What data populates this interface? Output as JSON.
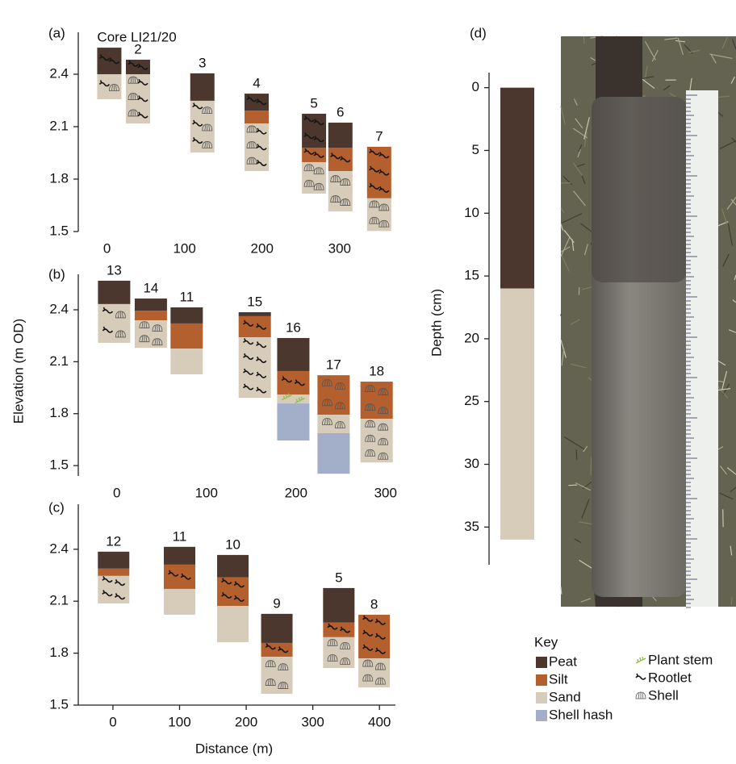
{
  "y_label": "Elevation (m OD)",
  "x_label": "Distance (m)",
  "chart_data": [
    {
      "type": "core-log",
      "label": "(a)",
      "xlim": [
        -37,
        372
      ],
      "xticks": [
        0,
        100,
        200,
        300
      ],
      "ylim": [
        1.5,
        2.64
      ],
      "yticks": [
        1.5,
        1.8,
        2.1,
        2.4
      ],
      "x_axis_line": false,
      "cores": [
        {
          "label": "Core LI21/20",
          "x": 3,
          "top": 2.552,
          "layers": [
            {
              "unit": "Peat",
              "base": 2.4,
              "symbols": [
                "Rootlet"
              ]
            },
            {
              "unit": "Sand",
              "base": 2.257,
              "symbols": [
                "Rootlet",
                "Shell"
              ]
            }
          ]
        },
        {
          "label": "2",
          "x": 40,
          "top": 2.483,
          "layers": [
            {
              "unit": "Peat",
              "base": 2.4,
              "symbols": [
                "Rootlet"
              ]
            },
            {
              "unit": "Sand",
              "base": 2.118,
              "symbols": [
                "Rootlet",
                "Shell"
              ]
            }
          ]
        },
        {
          "label": "3",
          "x": 123,
          "top": 2.405,
          "layers": [
            {
              "unit": "Peat",
              "base": 2.248,
              "symbols": []
            },
            {
              "unit": "Sand",
              "base": 1.952,
              "symbols": [
                "Rootlet",
                "Shell"
              ]
            }
          ]
        },
        {
          "label": "4",
          "x": 193,
          "top": 2.289,
          "layers": [
            {
              "unit": "Peat",
              "base": 2.192,
              "symbols": [
                "Rootlet"
              ]
            },
            {
              "unit": "Silt",
              "base": 2.118,
              "symbols": []
            },
            {
              "unit": "Sand",
              "base": 1.846,
              "symbols": [
                "Rootlet",
                "Shell"
              ]
            }
          ]
        },
        {
          "label": "5",
          "x": 267,
          "top": 2.174,
          "layers": [
            {
              "unit": "Peat",
              "base": 1.98,
              "symbols": [
                "Rootlet"
              ]
            },
            {
              "unit": "Silt",
              "base": 1.897,
              "symbols": [
                "Rootlet"
              ]
            },
            {
              "unit": "Sand",
              "base": 1.717,
              "symbols": [
                "Shell"
              ]
            }
          ]
        },
        {
          "label": "6",
          "x": 301,
          "top": 2.123,
          "layers": [
            {
              "unit": "Peat",
              "base": 1.98,
              "symbols": []
            },
            {
              "unit": "Silt",
              "base": 1.846,
              "symbols": [
                "Rootlet"
              ]
            },
            {
              "unit": "Sand",
              "base": 1.615,
              "symbols": [
                "Shell"
              ]
            }
          ]
        },
        {
          "label": "7",
          "x": 351,
          "top": 1.985,
          "layers": [
            {
              "unit": "Silt",
              "base": 1.69,
              "symbols": [
                "Rootlet"
              ]
            },
            {
              "unit": "Sand",
              "base": 1.503,
              "symbols": [
                "Shell"
              ]
            }
          ]
        }
      ]
    },
    {
      "type": "core-log",
      "label": "(b)",
      "xlim": [
        -43,
        311
      ],
      "xticks": [
        0,
        100,
        200,
        300
      ],
      "ylim": [
        1.44,
        2.605
      ],
      "yticks": [
        1.5,
        1.8,
        2.1,
        2.4
      ],
      "x_axis_line": false,
      "cores": [
        {
          "label": "13",
          "x": -3,
          "top": 2.568,
          "layers": [
            {
              "unit": "Peat",
              "base": 2.433,
              "symbols": []
            },
            {
              "unit": "Sand",
              "base": 2.209,
              "symbols": [
                "Rootlet",
                "Shell"
              ]
            }
          ]
        },
        {
          "label": "14",
          "x": 38,
          "top": 2.465,
          "layers": [
            {
              "unit": "Peat",
              "base": 2.395,
              "symbols": []
            },
            {
              "unit": "Silt",
              "base": 2.339,
              "symbols": []
            },
            {
              "unit": "Sand",
              "base": 2.18,
              "symbols": [
                "Shell"
              ]
            }
          ]
        },
        {
          "label": "11",
          "x": 78,
          "top": 2.414,
          "layers": [
            {
              "unit": "Peat",
              "base": 2.321,
              "symbols": []
            },
            {
              "unit": "Silt",
              "base": 2.176,
              "symbols": []
            },
            {
              "unit": "Sand",
              "base": 2.027,
              "symbols": []
            }
          ]
        },
        {
          "label": "15",
          "x": 154,
          "top": 2.386,
          "layers": [
            {
              "unit": "Peat",
              "base": 2.363,
              "symbols": []
            },
            {
              "unit": "Silt",
              "base": 2.241,
              "symbols": [
                "Rootlet"
              ]
            },
            {
              "unit": "Sand",
              "base": 1.891,
              "symbols": [
                "Rootlet"
              ]
            }
          ]
        },
        {
          "label": "16",
          "x": 197,
          "top": 2.237,
          "layers": [
            {
              "unit": "Peat",
              "base": 2.046,
              "symbols": []
            },
            {
              "unit": "Silt",
              "base": 1.91,
              "symbols": [
                "Rootlet"
              ]
            },
            {
              "unit": "Sand",
              "base": 1.859,
              "symbols": [
                "Plant stem"
              ]
            },
            {
              "unit": "Shell hash",
              "base": 1.645,
              "symbols": []
            }
          ]
        },
        {
          "label": "17",
          "x": 242,
          "top": 2.022,
          "layers": [
            {
              "unit": "Silt",
              "base": 1.794,
              "symbols": [
                "Shell"
              ]
            },
            {
              "unit": "Sand",
              "base": 1.687,
              "symbols": [
                "Shell"
              ]
            },
            {
              "unit": "Shell hash",
              "base": 1.453,
              "symbols": []
            }
          ]
        },
        {
          "label": "18",
          "x": 290,
          "top": 1.985,
          "layers": [
            {
              "unit": "Silt",
              "base": 1.77,
              "symbols": [
                "Shell"
              ]
            },
            {
              "unit": "Sand",
              "base": 1.518,
              "symbols": [
                "Shell"
              ]
            }
          ]
        }
      ]
    },
    {
      "type": "core-log",
      "label": "(c)",
      "xlim": [
        -52,
        424
      ],
      "xticks": [
        0,
        100,
        200,
        300,
        400
      ],
      "ylim": [
        1.5,
        2.66
      ],
      "yticks": [
        1.5,
        1.8,
        2.1,
        2.4
      ],
      "x_axis_line": true,
      "cores": [
        {
          "label": "12",
          "x": 1,
          "top": 2.386,
          "layers": [
            {
              "unit": "Peat",
              "base": 2.288,
              "symbols": []
            },
            {
              "unit": "Silt",
              "base": 2.246,
              "symbols": []
            },
            {
              "unit": "Sand",
              "base": 2.087,
              "symbols": [
                "Rootlet"
              ]
            }
          ]
        },
        {
          "label": "11",
          "x": 100,
          "top": 2.414,
          "layers": [
            {
              "unit": "Peat",
              "base": 2.311,
              "symbols": []
            },
            {
              "unit": "Silt",
              "base": 2.171,
              "symbols": [
                "Rootlet"
              ]
            },
            {
              "unit": "Sand",
              "base": 2.022,
              "symbols": []
            }
          ]
        },
        {
          "label": "10",
          "x": 180,
          "top": 2.367,
          "layers": [
            {
              "unit": "Peat",
              "base": 2.237,
              "symbols": []
            },
            {
              "unit": "Silt",
              "base": 2.073,
              "symbols": [
                "Rootlet"
              ]
            },
            {
              "unit": "Sand",
              "base": 1.863,
              "symbols": []
            }
          ]
        },
        {
          "label": "9",
          "x": 246,
          "top": 2.027,
          "layers": [
            {
              "unit": "Peat",
              "base": 1.859,
              "symbols": []
            },
            {
              "unit": "Silt",
              "base": 1.779,
              "symbols": [
                "Rootlet"
              ]
            },
            {
              "unit": "Sand",
              "base": 1.565,
              "symbols": [
                "Shell"
              ]
            }
          ]
        },
        {
          "label": "5",
          "x": 339,
          "top": 2.176,
          "layers": [
            {
              "unit": "Peat",
              "base": 1.976,
              "symbols": []
            },
            {
              "unit": "Silt",
              "base": 1.892,
              "symbols": [
                "Rootlet"
              ]
            },
            {
              "unit": "Sand",
              "base": 1.714,
              "symbols": [
                "Shell"
              ]
            }
          ]
        },
        {
          "label": "8",
          "x": 392,
          "top": 2.022,
          "layers": [
            {
              "unit": "Silt",
              "base": 1.77,
              "symbols": [
                "Rootlet"
              ]
            },
            {
              "unit": "Sand",
              "base": 1.602,
              "symbols": [
                "Shell"
              ]
            }
          ]
        }
      ]
    },
    {
      "type": "core-column",
      "label": "(d)",
      "y_label": "Depth (cm)",
      "ylim": [
        -1.2,
        38
      ],
      "inverted": true,
      "yticks": [
        0,
        5,
        10,
        15,
        20,
        25,
        30,
        35
      ],
      "top": 0,
      "layers": [
        {
          "unit": "Peat",
          "base": 16
        },
        {
          "unit": "Sand",
          "base": 36
        }
      ]
    }
  ],
  "key": {
    "title": "Key",
    "units": [
      {
        "name": "Peat",
        "color": "#4b372d"
      },
      {
        "name": "Silt",
        "color": "#b4602e"
      },
      {
        "name": "Sand",
        "color": "#d7ccb9"
      },
      {
        "name": "Shell hash",
        "color": "#a3aec8"
      }
    ],
    "symbols": [
      "Plant stem",
      "Rootlet",
      "Shell"
    ]
  }
}
